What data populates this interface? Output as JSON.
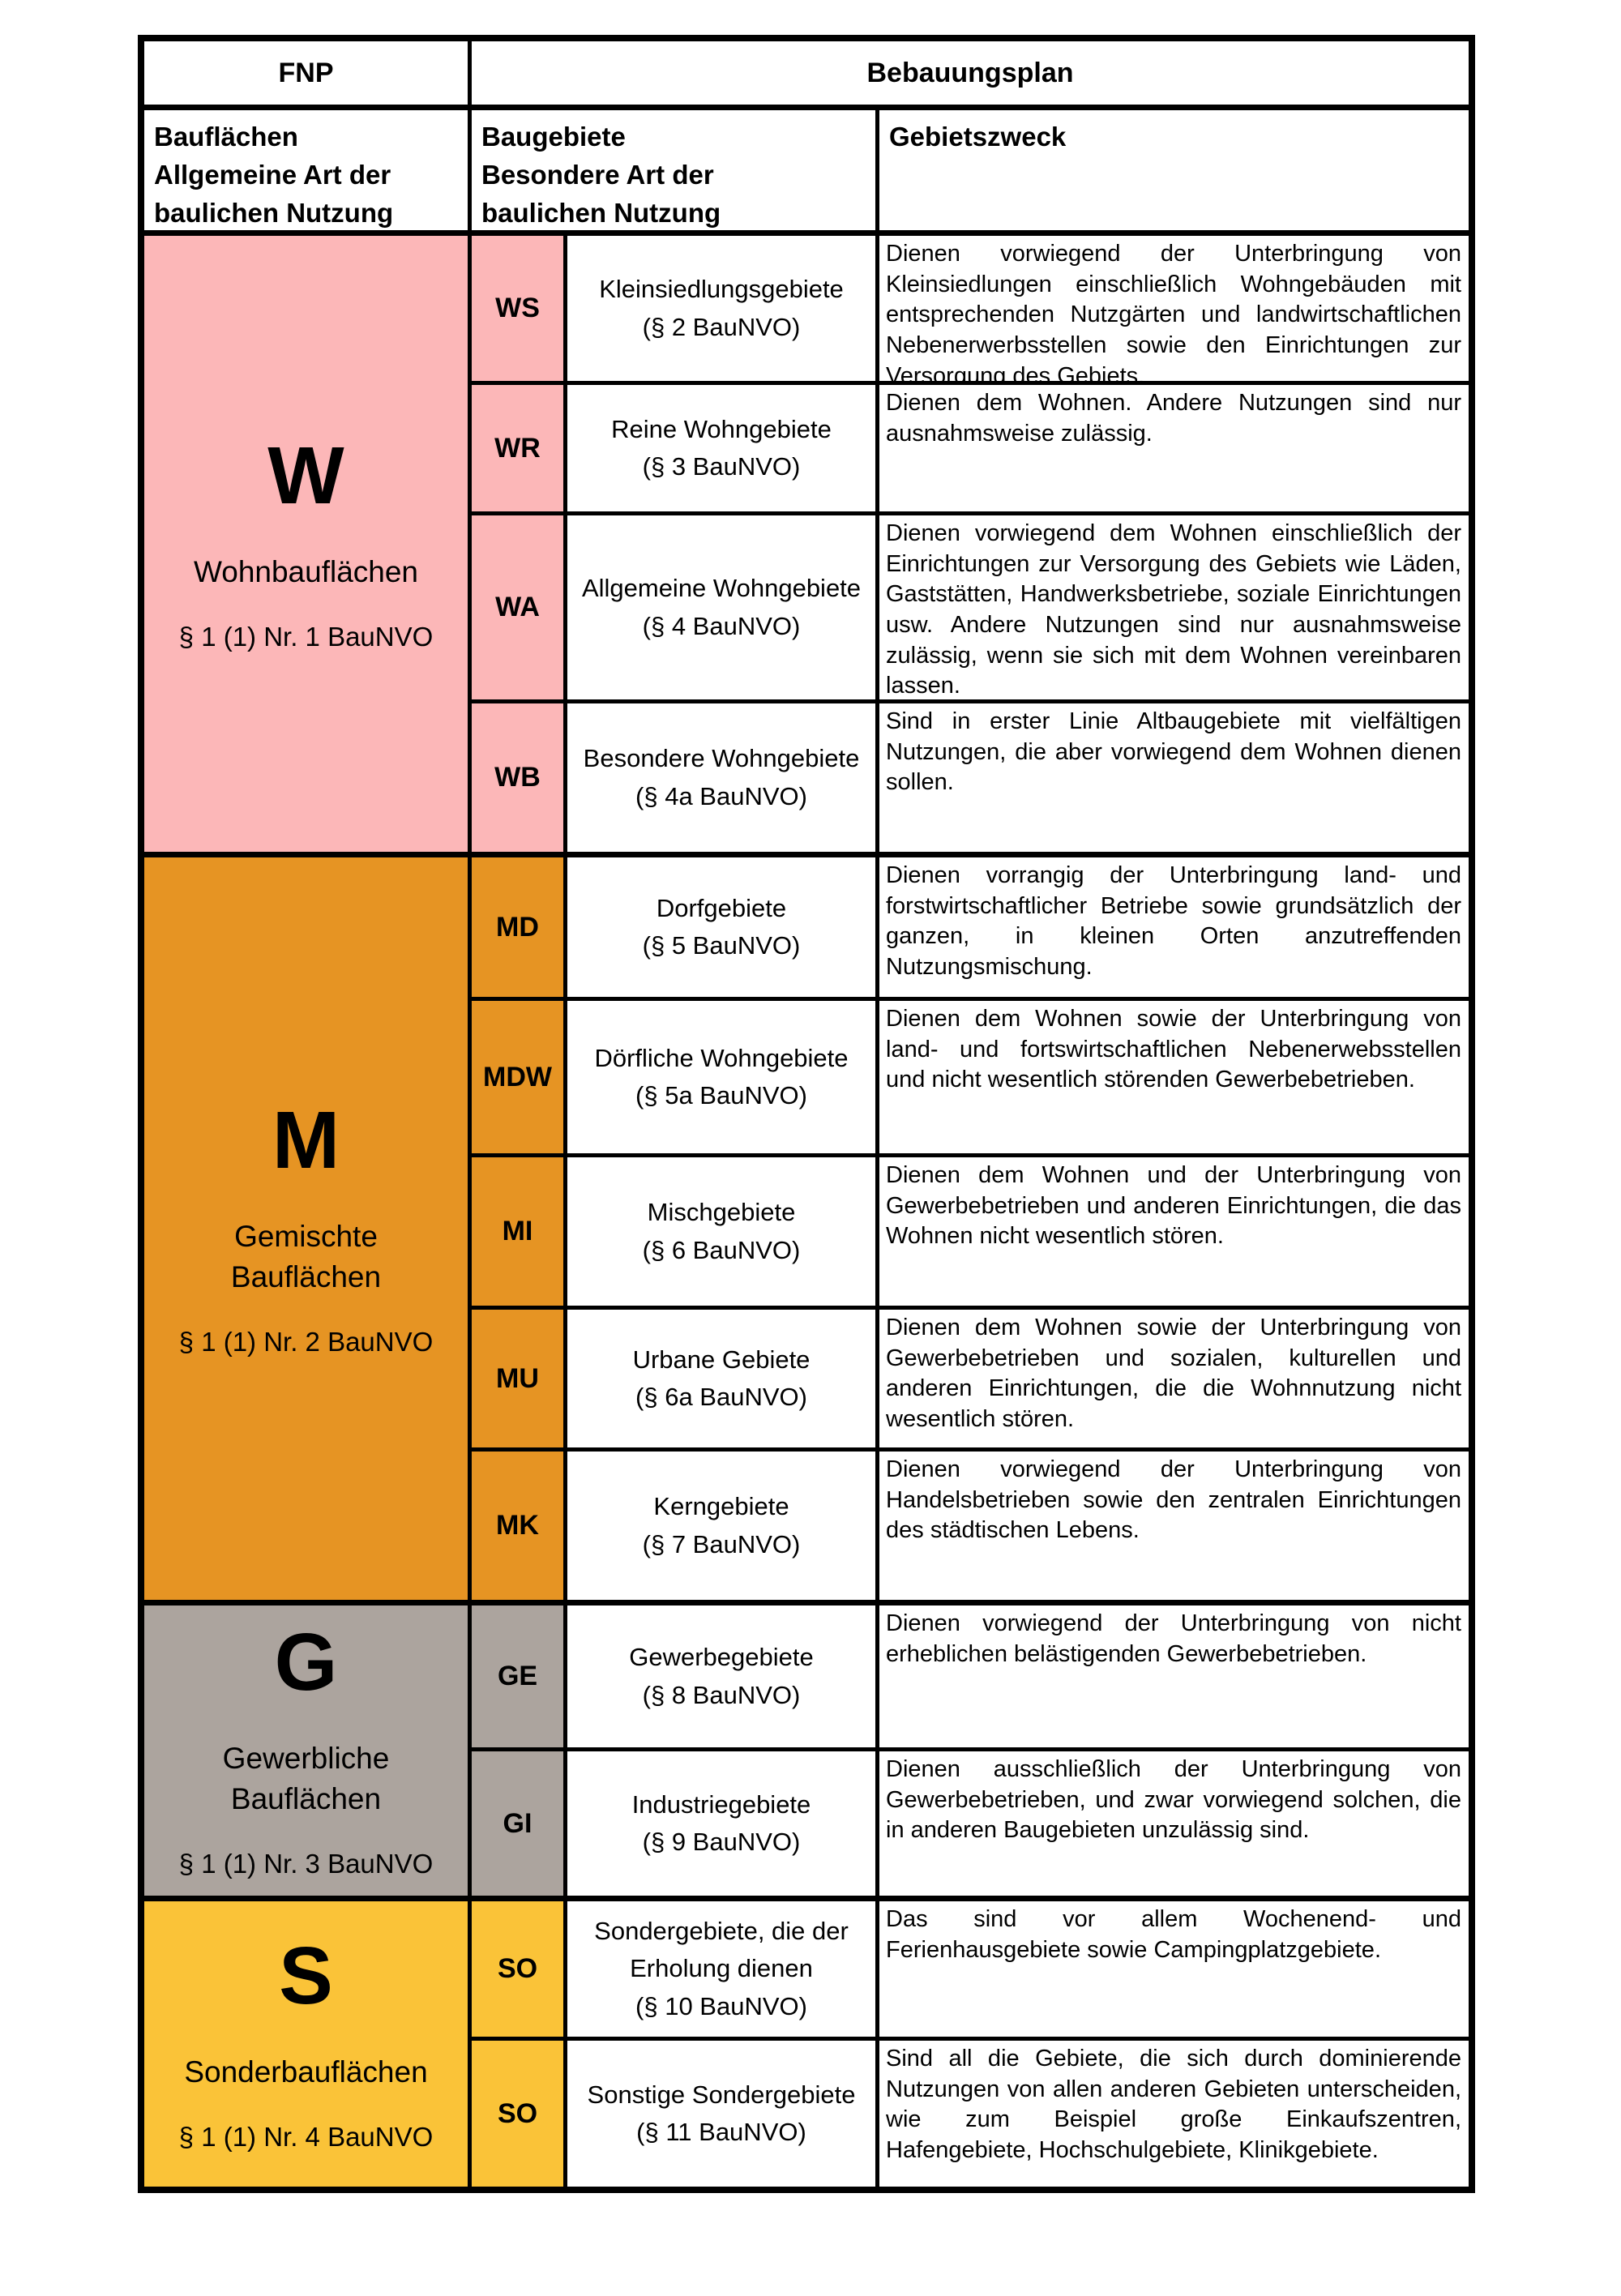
{
  "colors": {
    "background": "#FFFFFF",
    "border": "#000000",
    "section_w_pink": "#FCB7B8",
    "section_m_orange": "#E69423",
    "section_g_gray": "#ACA49E",
    "section_s_yellow": "#FAC338"
  },
  "header": {
    "fnp": "FNP",
    "bebauungsplan": "Bebauungsplan",
    "col_left": "Bauflächen\nAllgemeine Art der\nbaulichen Nutzung",
    "col_mid": "Baugebiete\nBesondere Art der\nbaulichen Nutzung",
    "col_right": "Gebietszweck"
  },
  "sections": [
    {
      "letter": "W",
      "label": "Wohnbauflächen",
      "ref": "§ 1 (1) Nr. 1 BauNVO",
      "color": "#FCB7B8",
      "rows": [
        {
          "code": "WS",
          "name": "Kleinsiedlungsgebiete",
          "ref": "(§ 2 BauNVO)",
          "zweck": "Dienen vorwiegend der Unterbringung von Kleinsiedlungen einschließlich Wohngebäuden mit entsprechenden Nutzgärten und landwirtschaftlichen Nebenerwerbsstellen sowie den Einrichtungen zur Versorgung des Gebiets."
        },
        {
          "code": "WR",
          "name": "Reine Wohngebiete",
          "ref": "(§ 3 BauNVO)",
          "zweck": "Dienen dem Wohnen. Andere Nutzungen sind nur ausnahmsweise zulässig."
        },
        {
          "code": "WA",
          "name": "Allgemeine Wohngebiete",
          "ref": "(§ 4 BauNVO)",
          "zweck": "Dienen vorwiegend dem Wohnen einschließlich der Einrichtungen zur Versorgung des Gebiets wie Läden, Gaststätten, Handwerksbetriebe, soziale Einrichtungen usw. Andere Nutzungen sind nur ausnahmsweise zulässig, wenn sie sich mit dem Wohnen vereinbaren lassen."
        },
        {
          "code": "WB",
          "name": "Besondere Wohngebiete",
          "ref": "(§ 4a BauNVO)",
          "zweck": "Sind in erster Linie Altbaugebiete mit vielfältigen Nutzungen, die aber vorwiegend dem Wohnen dienen sollen."
        }
      ]
    },
    {
      "letter": "M",
      "label": "Gemischte Bauflächen",
      "ref": "§ 1 (1) Nr. 2 BauNVO",
      "color": "#E69423",
      "rows": [
        {
          "code": "MD",
          "name": "Dorfgebiete",
          "ref": "(§ 5 BauNVO)",
          "zweck": "Dienen vorrangig der Unterbringung land- und forstwirtschaftlicher Betriebe sowie grundsätzlich der ganzen, in kleinen Orten anzutreffenden Nutzungsmischung."
        },
        {
          "code": "MDW",
          "name": "Dörfliche Wohngebiete",
          "ref": "(§ 5a BauNVO)",
          "zweck": "Dienen dem Wohnen sowie der Unterbringung von land- und fortswirtschaftlichen Nebenerwebsstellen und nicht wesentlich störenden Gewerbebetrieben."
        },
        {
          "code": "MI",
          "name": "Mischgebiete",
          "ref": "(§ 6 BauNVO)",
          "zweck": "Dienen dem Wohnen und der Unterbringung von Gewerbebetrieben und anderen Einrichtungen, die das Wohnen nicht wesentlich stören."
        },
        {
          "code": "MU",
          "name": "Urbane Gebiete",
          "ref": "(§ 6a BauNVO)",
          "zweck": "Dienen dem Wohnen sowie der Unterbringung von Gewerbebetrieben und sozialen, kulturellen und anderen Einrichtungen, die die Wohnnutzung nicht wesentlich stören."
        },
        {
          "code": "MK",
          "name": "Kerngebiete",
          "ref": "(§ 7 BauNVO)",
          "zweck": "Dienen vorwiegend der Unterbringung von Handelsbetrieben sowie den zentralen Einrichtungen des städtischen Lebens."
        }
      ]
    },
    {
      "letter": "G",
      "label": "Gewerbliche Bauflächen",
      "ref": "§ 1 (1) Nr. 3 BauNVO",
      "color": "#ACA49E",
      "rows": [
        {
          "code": "GE",
          "name": "Gewerbegebiete",
          "ref": "(§ 8 BauNVO)",
          "zweck": "Dienen vorwiegend der Unterbringung von nicht erheblichen belästigenden Gewerbebetrieben."
        },
        {
          "code": "GI",
          "name": "Industriegebiete",
          "ref": "(§ 9 BauNVO)",
          "zweck": "Dienen ausschließlich der Unterbringung von Gewerbebetrieben, und zwar vorwiegend solchen, die in anderen Baugebieten unzulässig sind."
        }
      ]
    },
    {
      "letter": "S",
      "label": "Sonderbauflächen",
      "ref": "§ 1 (1) Nr. 4 BauNVO",
      "color": "#FAC338",
      "rows": [
        {
          "code": "SO",
          "name": "Sondergebiete, die der Erholung dienen",
          "ref": "(§ 10 BauNVO)",
          "zweck": "Das sind vor allem Wochenend- und Ferienhausgebiete sowie Campingplatzgebiete."
        },
        {
          "code": "SO",
          "name": "Sonstige Sondergebiete",
          "ref": "(§ 11 BauNVO)",
          "zweck": "Sind all die Gebiete, die sich durch dominierende Nutzungen von allen anderen Gebieten unterscheiden, wie zum Beispiel große Einkaufszentren, Hafengebiete, Hochschulgebiete, Klinikgebiete."
        }
      ]
    }
  ]
}
